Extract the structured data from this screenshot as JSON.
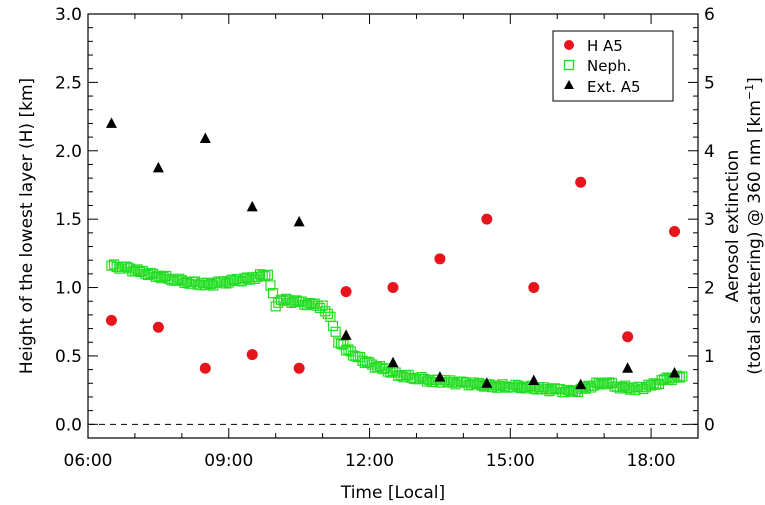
{
  "chart_data": {
    "type": "scatter",
    "xlabel": "Time [Local]",
    "ylabel": "Height of the lowest layer (H) [km]",
    "y2label_line1": "Aerosol extinction",
    "y2label_line2": "(total scattering) @ 360 nm [km",
    "y2label_sup": "−1",
    "y2label_close": "]",
    "xlim": [
      "06:00",
      "19:00"
    ],
    "ylim": [
      -0.1,
      3.0
    ],
    "y2lim": [
      -0.2,
      6.0
    ],
    "x_ticks": [
      "06:00",
      "09:00",
      "12:00",
      "15:00",
      "18:00"
    ],
    "y_ticks": [
      "0.0",
      "0.5",
      "1.0",
      "1.5",
      "2.0",
      "2.5",
      "3.0"
    ],
    "y2_ticks": [
      "0",
      "1",
      "2",
      "3",
      "4",
      "5",
      "6"
    ],
    "zero_line": true,
    "legend_position": "top-right",
    "series": [
      {
        "name": "H A5",
        "marker": "circle",
        "color": "#e8141b",
        "axis": "left",
        "x": [
          "06:30",
          "07:30",
          "08:30",
          "09:30",
          "10:30",
          "11:30",
          "12:30",
          "13:30",
          "14:30",
          "15:30",
          "16:30",
          "17:30",
          "18:30"
        ],
        "y": [
          0.76,
          0.71,
          0.41,
          0.51,
          0.41,
          0.97,
          1.0,
          1.21,
          1.5,
          1.0,
          1.77,
          0.64,
          1.41
        ]
      },
      {
        "name": "Neph.",
        "marker": "square-open",
        "color": "#22dd22",
        "axis": "right",
        "x": [
          "06:30",
          "06:50",
          "07:10",
          "07:30",
          "07:50",
          "08:10",
          "08:30",
          "08:50",
          "09:10",
          "09:30",
          "09:50",
          "10:00",
          "10:10",
          "10:30",
          "10:50",
          "11:00",
          "11:10",
          "11:20",
          "11:30",
          "11:45",
          "12:00",
          "12:20",
          "12:40",
          "13:00",
          "13:20",
          "13:40",
          "14:00",
          "14:20",
          "14:40",
          "15:00",
          "15:20",
          "15:40",
          "16:00",
          "16:20",
          "16:40",
          "17:00",
          "17:20",
          "17:40",
          "18:00",
          "18:20",
          "18:40"
        ],
        "y": [
          2.32,
          2.28,
          2.22,
          2.17,
          2.12,
          2.08,
          2.04,
          2.07,
          2.1,
          2.14,
          2.2,
          1.75,
          1.82,
          1.78,
          1.74,
          1.72,
          1.58,
          1.22,
          1.1,
          0.98,
          0.88,
          0.8,
          0.72,
          0.68,
          0.64,
          0.62,
          0.6,
          0.58,
          0.56,
          0.56,
          0.55,
          0.52,
          0.5,
          0.47,
          0.55,
          0.62,
          0.55,
          0.52,
          0.56,
          0.66,
          0.7
        ]
      },
      {
        "name": "Ext. A5",
        "marker": "triangle",
        "color": "#000000",
        "axis": "right",
        "x": [
          "06:30",
          "07:30",
          "08:30",
          "09:30",
          "10:30",
          "11:30",
          "12:30",
          "13:30",
          "14:30",
          "15:30",
          "16:30",
          "17:30",
          "18:30"
        ],
        "y": [
          4.4,
          3.75,
          4.18,
          3.18,
          2.96,
          1.3,
          0.9,
          0.69,
          0.6,
          0.64,
          0.58,
          0.82,
          0.75
        ]
      }
    ]
  }
}
